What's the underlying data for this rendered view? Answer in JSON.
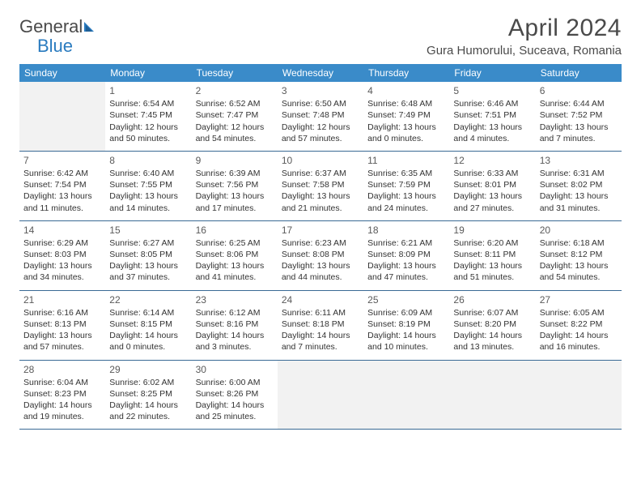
{
  "logo": {
    "word1": "General",
    "word2": "Blue"
  },
  "title": "April 2024",
  "location": "Gura Humorului, Suceava, Romania",
  "colors": {
    "header_bg": "#3a8bc9",
    "header_text": "#ffffff",
    "week_border": "#3a6a95",
    "blank_bg": "#f2f2f2",
    "text": "#333333",
    "title_text": "#4a4a4a",
    "logo_blue": "#2a7bbf"
  },
  "weekdays": [
    "Sunday",
    "Monday",
    "Tuesday",
    "Wednesday",
    "Thursday",
    "Friday",
    "Saturday"
  ],
  "weeks": [
    [
      {
        "blank": true
      },
      {
        "n": "1",
        "sr": "Sunrise: 6:54 AM",
        "ss": "Sunset: 7:45 PM",
        "d1": "Daylight: 12 hours",
        "d2": "and 50 minutes."
      },
      {
        "n": "2",
        "sr": "Sunrise: 6:52 AM",
        "ss": "Sunset: 7:47 PM",
        "d1": "Daylight: 12 hours",
        "d2": "and 54 minutes."
      },
      {
        "n": "3",
        "sr": "Sunrise: 6:50 AM",
        "ss": "Sunset: 7:48 PM",
        "d1": "Daylight: 12 hours",
        "d2": "and 57 minutes."
      },
      {
        "n": "4",
        "sr": "Sunrise: 6:48 AM",
        "ss": "Sunset: 7:49 PM",
        "d1": "Daylight: 13 hours",
        "d2": "and 0 minutes."
      },
      {
        "n": "5",
        "sr": "Sunrise: 6:46 AM",
        "ss": "Sunset: 7:51 PM",
        "d1": "Daylight: 13 hours",
        "d2": "and 4 minutes."
      },
      {
        "n": "6",
        "sr": "Sunrise: 6:44 AM",
        "ss": "Sunset: 7:52 PM",
        "d1": "Daylight: 13 hours",
        "d2": "and 7 minutes."
      }
    ],
    [
      {
        "n": "7",
        "sr": "Sunrise: 6:42 AM",
        "ss": "Sunset: 7:54 PM",
        "d1": "Daylight: 13 hours",
        "d2": "and 11 minutes."
      },
      {
        "n": "8",
        "sr": "Sunrise: 6:40 AM",
        "ss": "Sunset: 7:55 PM",
        "d1": "Daylight: 13 hours",
        "d2": "and 14 minutes."
      },
      {
        "n": "9",
        "sr": "Sunrise: 6:39 AM",
        "ss": "Sunset: 7:56 PM",
        "d1": "Daylight: 13 hours",
        "d2": "and 17 minutes."
      },
      {
        "n": "10",
        "sr": "Sunrise: 6:37 AM",
        "ss": "Sunset: 7:58 PM",
        "d1": "Daylight: 13 hours",
        "d2": "and 21 minutes."
      },
      {
        "n": "11",
        "sr": "Sunrise: 6:35 AM",
        "ss": "Sunset: 7:59 PM",
        "d1": "Daylight: 13 hours",
        "d2": "and 24 minutes."
      },
      {
        "n": "12",
        "sr": "Sunrise: 6:33 AM",
        "ss": "Sunset: 8:01 PM",
        "d1": "Daylight: 13 hours",
        "d2": "and 27 minutes."
      },
      {
        "n": "13",
        "sr": "Sunrise: 6:31 AM",
        "ss": "Sunset: 8:02 PM",
        "d1": "Daylight: 13 hours",
        "d2": "and 31 minutes."
      }
    ],
    [
      {
        "n": "14",
        "sr": "Sunrise: 6:29 AM",
        "ss": "Sunset: 8:03 PM",
        "d1": "Daylight: 13 hours",
        "d2": "and 34 minutes."
      },
      {
        "n": "15",
        "sr": "Sunrise: 6:27 AM",
        "ss": "Sunset: 8:05 PM",
        "d1": "Daylight: 13 hours",
        "d2": "and 37 minutes."
      },
      {
        "n": "16",
        "sr": "Sunrise: 6:25 AM",
        "ss": "Sunset: 8:06 PM",
        "d1": "Daylight: 13 hours",
        "d2": "and 41 minutes."
      },
      {
        "n": "17",
        "sr": "Sunrise: 6:23 AM",
        "ss": "Sunset: 8:08 PM",
        "d1": "Daylight: 13 hours",
        "d2": "and 44 minutes."
      },
      {
        "n": "18",
        "sr": "Sunrise: 6:21 AM",
        "ss": "Sunset: 8:09 PM",
        "d1": "Daylight: 13 hours",
        "d2": "and 47 minutes."
      },
      {
        "n": "19",
        "sr": "Sunrise: 6:20 AM",
        "ss": "Sunset: 8:11 PM",
        "d1": "Daylight: 13 hours",
        "d2": "and 51 minutes."
      },
      {
        "n": "20",
        "sr": "Sunrise: 6:18 AM",
        "ss": "Sunset: 8:12 PM",
        "d1": "Daylight: 13 hours",
        "d2": "and 54 minutes."
      }
    ],
    [
      {
        "n": "21",
        "sr": "Sunrise: 6:16 AM",
        "ss": "Sunset: 8:13 PM",
        "d1": "Daylight: 13 hours",
        "d2": "and 57 minutes."
      },
      {
        "n": "22",
        "sr": "Sunrise: 6:14 AM",
        "ss": "Sunset: 8:15 PM",
        "d1": "Daylight: 14 hours",
        "d2": "and 0 minutes."
      },
      {
        "n": "23",
        "sr": "Sunrise: 6:12 AM",
        "ss": "Sunset: 8:16 PM",
        "d1": "Daylight: 14 hours",
        "d2": "and 3 minutes."
      },
      {
        "n": "24",
        "sr": "Sunrise: 6:11 AM",
        "ss": "Sunset: 8:18 PM",
        "d1": "Daylight: 14 hours",
        "d2": "and 7 minutes."
      },
      {
        "n": "25",
        "sr": "Sunrise: 6:09 AM",
        "ss": "Sunset: 8:19 PM",
        "d1": "Daylight: 14 hours",
        "d2": "and 10 minutes."
      },
      {
        "n": "26",
        "sr": "Sunrise: 6:07 AM",
        "ss": "Sunset: 8:20 PM",
        "d1": "Daylight: 14 hours",
        "d2": "and 13 minutes."
      },
      {
        "n": "27",
        "sr": "Sunrise: 6:05 AM",
        "ss": "Sunset: 8:22 PM",
        "d1": "Daylight: 14 hours",
        "d2": "and 16 minutes."
      }
    ],
    [
      {
        "n": "28",
        "sr": "Sunrise: 6:04 AM",
        "ss": "Sunset: 8:23 PM",
        "d1": "Daylight: 14 hours",
        "d2": "and 19 minutes."
      },
      {
        "n": "29",
        "sr": "Sunrise: 6:02 AM",
        "ss": "Sunset: 8:25 PM",
        "d1": "Daylight: 14 hours",
        "d2": "and 22 minutes."
      },
      {
        "n": "30",
        "sr": "Sunrise: 6:00 AM",
        "ss": "Sunset: 8:26 PM",
        "d1": "Daylight: 14 hours",
        "d2": "and 25 minutes."
      },
      {
        "blank": true
      },
      {
        "blank": true
      },
      {
        "blank": true
      },
      {
        "blank": true
      }
    ]
  ]
}
